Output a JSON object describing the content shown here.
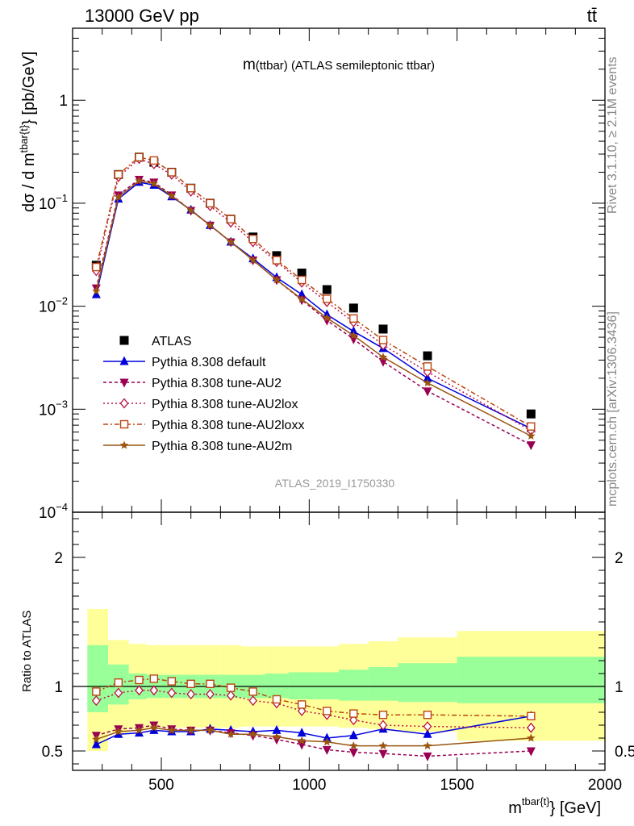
{
  "header": {
    "collision": "13000 GeV pp",
    "process": "tt̄",
    "rivet": "Rivet 3.1.10, ≥ 2.1M events",
    "source": "mcplots.cern.ch [arXiv:1306.3436]",
    "analysis_id": "ATLAS_2019_I1750330"
  },
  "chart_data": [
    {
      "type": "line",
      "title": "m(ttbar) (ATLAS semileptonic ttbar)",
      "title_main": "m",
      "title_sub": "(ttbar) (ATLAS semileptonic ttbar)",
      "ylabel_parts": [
        "dσ / d m",
        "tbar{t}",
        "} [pb/GeV]"
      ],
      "yscale": "log",
      "ylim": [
        0.0001,
        5
      ],
      "xlim": [
        200,
        2000
      ],
      "y_ticks": [
        {
          "v": 0.0001,
          "b": "10",
          "e": "−4"
        },
        {
          "v": 0.001,
          "b": "10",
          "e": "−3"
        },
        {
          "v": 0.01,
          "b": "10",
          "e": "−2"
        },
        {
          "v": 0.1,
          "b": "10",
          "e": "−1"
        },
        {
          "v": 1,
          "b": "1",
          "e": ""
        }
      ],
      "legend_position": "middle-left",
      "x": [
        280,
        355,
        425,
        475,
        535,
        600,
        665,
        735,
        810,
        890,
        975,
        1060,
        1150,
        1250,
        1400,
        1750
      ],
      "series": [
        {
          "name": "ATLAS",
          "color": "#000000",
          "marker": "filled-square",
          "dash": "",
          "values": [
            0.025,
            0.19,
            0.28,
            0.25,
            0.2,
            0.14,
            0.1,
            0.07,
            0.047,
            0.031,
            0.021,
            0.0145,
            0.0096,
            0.006,
            0.0033,
            0.0009
          ]
        },
        {
          "name": "Pythia 8.308 default",
          "color": "#0000dd",
          "marker": "triangle-up",
          "dash": "",
          "values": [
            0.013,
            0.11,
            0.16,
            0.15,
            0.116,
            0.086,
            0.061,
            0.042,
            0.029,
            0.019,
            0.013,
            0.0083,
            0.0057,
            0.0039,
            0.002,
            0.00065
          ]
        },
        {
          "name": "Pythia 8.308 tune-AU2",
          "color": "#990055",
          "marker": "triangle-down",
          "dash": "4,3",
          "values": [
            0.015,
            0.12,
            0.17,
            0.16,
            0.12,
            0.085,
            0.061,
            0.042,
            0.028,
            0.018,
            0.0115,
            0.0073,
            0.0048,
            0.0029,
            0.0015,
            0.00045
          ]
        },
        {
          "name": "Pythia 8.308 tune-AU2lox",
          "color": "#bb1144",
          "marker": "open-diamond",
          "dash": "2,3",
          "values": [
            0.022,
            0.18,
            0.27,
            0.24,
            0.19,
            0.13,
            0.094,
            0.065,
            0.042,
            0.027,
            0.017,
            0.011,
            0.007,
            0.0042,
            0.0023,
            0.00062
          ]
        },
        {
          "name": "Pythia 8.308 tune-AU2loxx",
          "color": "#bb4411",
          "marker": "open-square",
          "dash": "6,3,2,3",
          "values": [
            0.024,
            0.19,
            0.28,
            0.26,
            0.2,
            0.14,
            0.1,
            0.07,
            0.045,
            0.028,
            0.018,
            0.0118,
            0.0076,
            0.0047,
            0.0026,
            0.00068
          ]
        },
        {
          "name": "Pythia 8.308 tune-AU2m",
          "color": "#995511",
          "marker": "star",
          "dash": "",
          "values": [
            0.014,
            0.115,
            0.165,
            0.155,
            0.118,
            0.085,
            0.061,
            0.042,
            0.028,
            0.018,
            0.0117,
            0.0077,
            0.0052,
            0.0032,
            0.0018,
            0.00055
          ]
        }
      ]
    },
    {
      "type": "line",
      "ylabel": "Ratio to ATLAS",
      "ylim": [
        0.35,
        2.35
      ],
      "xlim": [
        200,
        2000
      ],
      "y_ticks": [
        0.5,
        1,
        2
      ],
      "x_ticks": [
        500,
        1000,
        1500,
        2000
      ],
      "xlabel_parts": [
        "m",
        "tbar{t}",
        "} [GeV]"
      ],
      "reference_line": 1,
      "bin_edges": [
        250,
        320,
        390,
        450,
        500,
        570,
        630,
        700,
        770,
        850,
        930,
        1020,
        1100,
        1200,
        1300,
        1500,
        2000
      ],
      "band_outer": [
        {
          "lo": 0.5,
          "hi": 1.6
        },
        {
          "lo": 0.64,
          "hi": 1.36
        },
        {
          "lo": 0.67,
          "hi": 1.33
        },
        {
          "lo": 0.68,
          "hi": 1.32
        },
        {
          "lo": 0.68,
          "hi": 1.32
        },
        {
          "lo": 0.68,
          "hi": 1.32
        },
        {
          "lo": 0.68,
          "hi": 1.32
        },
        {
          "lo": 0.68,
          "hi": 1.32
        },
        {
          "lo": 0.69,
          "hi": 1.31
        },
        {
          "lo": 0.69,
          "hi": 1.31
        },
        {
          "lo": 0.69,
          "hi": 1.31
        },
        {
          "lo": 0.69,
          "hi": 1.31
        },
        {
          "lo": 0.68,
          "hi": 1.33
        },
        {
          "lo": 0.67,
          "hi": 1.35
        },
        {
          "lo": 0.65,
          "hi": 1.38
        },
        {
          "lo": 0.58,
          "hi": 1.43
        }
      ],
      "band_inner": [
        {
          "lo": 0.8,
          "hi": 1.32
        },
        {
          "lo": 0.86,
          "hi": 1.17
        },
        {
          "lo": 0.9,
          "hi": 1.1
        },
        {
          "lo": 0.91,
          "hi": 1.09
        },
        {
          "lo": 0.91,
          "hi": 1.09
        },
        {
          "lo": 0.91,
          "hi": 1.09
        },
        {
          "lo": 0.91,
          "hi": 1.09
        },
        {
          "lo": 0.91,
          "hi": 1.09
        },
        {
          "lo": 0.91,
          "hi": 1.09
        },
        {
          "lo": 0.91,
          "hi": 1.1
        },
        {
          "lo": 0.9,
          "hi": 1.11
        },
        {
          "lo": 0.9,
          "hi": 1.11
        },
        {
          "lo": 0.89,
          "hi": 1.13
        },
        {
          "lo": 0.89,
          "hi": 1.15
        },
        {
          "lo": 0.88,
          "hi": 1.18
        },
        {
          "lo": 0.87,
          "hi": 1.23
        }
      ],
      "x": [
        280,
        355,
        425,
        475,
        535,
        600,
        665,
        735,
        810,
        890,
        975,
        1060,
        1150,
        1250,
        1400,
        1750
      ],
      "series": [
        {
          "name": "Pythia 8.308 default",
          "color": "#0000dd",
          "marker": "triangle-up",
          "dash": "",
          "values": [
            0.55,
            0.63,
            0.64,
            0.66,
            0.65,
            0.65,
            0.67,
            0.66,
            0.65,
            0.66,
            0.64,
            0.6,
            0.62,
            0.67,
            0.63,
            0.77
          ]
        },
        {
          "name": "Pythia 8.308 tune-AU2",
          "color": "#990055",
          "marker": "triangle-down",
          "dash": "4,3",
          "values": [
            0.62,
            0.67,
            0.68,
            0.7,
            0.67,
            0.66,
            0.66,
            0.64,
            0.62,
            0.59,
            0.55,
            0.51,
            0.49,
            0.48,
            0.46,
            0.5
          ]
        },
        {
          "name": "Pythia 8.308 tune-AU2lox",
          "color": "#bb1144",
          "marker": "open-diamond",
          "dash": "2,3",
          "values": [
            0.89,
            0.95,
            0.97,
            0.97,
            0.95,
            0.94,
            0.94,
            0.93,
            0.89,
            0.87,
            0.81,
            0.78,
            0.74,
            0.7,
            0.69,
            0.68
          ]
        },
        {
          "name": "Pythia 8.308 tune-AU2loxx",
          "color": "#bb4411",
          "marker": "open-square",
          "dash": "6,3,2,3",
          "values": [
            0.96,
            1.03,
            1.05,
            1.06,
            1.04,
            1.02,
            1.02,
            0.99,
            0.96,
            0.9,
            0.86,
            0.81,
            0.79,
            0.78,
            0.78,
            0.77
          ]
        },
        {
          "name": "Pythia 8.308 tune-AU2m",
          "color": "#995511",
          "marker": "star",
          "dash": "",
          "values": [
            0.59,
            0.65,
            0.66,
            0.68,
            0.66,
            0.66,
            0.66,
            0.63,
            0.63,
            0.61,
            0.58,
            0.57,
            0.54,
            0.54,
            0.54,
            0.6
          ]
        }
      ]
    }
  ]
}
